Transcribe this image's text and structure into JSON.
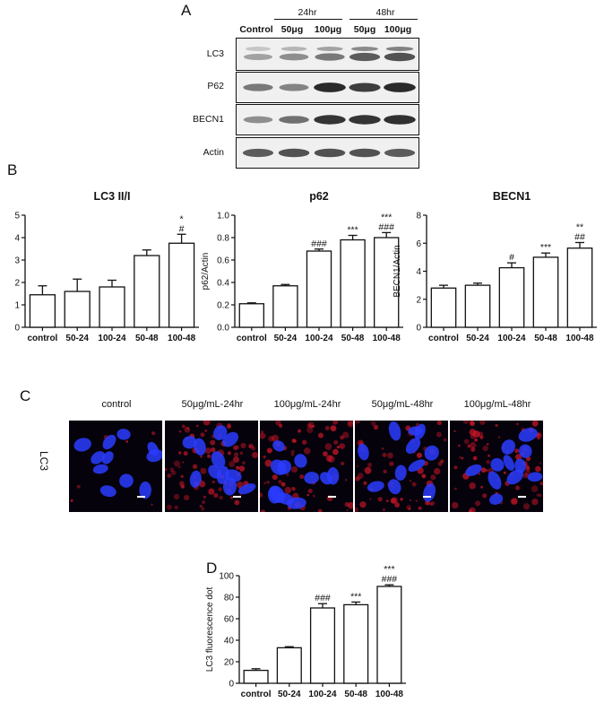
{
  "panels": {
    "A": "A",
    "B": "B",
    "C": "C",
    "D": "D"
  },
  "blot": {
    "time_headers": [
      "24hr",
      "48hr"
    ],
    "lanes": [
      "Control",
      "50μg",
      "100μg",
      "50μg",
      "100μg"
    ],
    "rows": [
      {
        "label": "LC3",
        "intensity": [
          0.35,
          0.45,
          0.55,
          0.7,
          0.75
        ]
      },
      {
        "label": "P62",
        "intensity": [
          0.55,
          0.5,
          0.95,
          0.85,
          0.95
        ]
      },
      {
        "label": "BECN1",
        "intensity": [
          0.45,
          0.6,
          0.9,
          0.9,
          0.92
        ]
      },
      {
        "label": "Actin",
        "intensity": [
          0.7,
          0.75,
          0.75,
          0.75,
          0.7
        ]
      }
    ]
  },
  "chart_data": [
    {
      "type": "bar",
      "title": "LC3 II/I",
      "ylabel": "LC3 II/I",
      "xlabel": "",
      "categories": [
        "control",
        "50-24",
        "100-24",
        "50-48",
        "100-48"
      ],
      "values": [
        1.45,
        1.6,
        1.8,
        3.2,
        3.75
      ],
      "errors": [
        0.4,
        0.55,
        0.3,
        0.25,
        0.4
      ],
      "ylim": [
        0,
        5
      ],
      "yticks": [
        "0",
        "1",
        "2",
        "3",
        "4",
        "5"
      ],
      "annotations": [
        "",
        "",
        "",
        "",
        "*\n#"
      ]
    },
    {
      "type": "bar",
      "title": "p62",
      "ylabel": "p62/Actin",
      "xlabel": "",
      "categories": [
        "control",
        "50-24",
        "100-24",
        "50-48",
        "100-48"
      ],
      "values": [
        0.21,
        0.37,
        0.68,
        0.78,
        0.8
      ],
      "errors": [
        0.008,
        0.012,
        0.018,
        0.04,
        0.045
      ],
      "ylim": [
        0,
        1.0
      ],
      "yticks": [
        "0.0",
        "0.2",
        "0.4",
        "0.6",
        "0.8",
        "1.0"
      ],
      "annotations": [
        "",
        "",
        "###",
        "***",
        "***\n###"
      ]
    },
    {
      "type": "bar",
      "title": "BECN1",
      "ylabel": "BECN1/Actin",
      "xlabel": "",
      "categories": [
        "control",
        "50-24",
        "100-24",
        "50-48",
        "100-48"
      ],
      "values": [
        2.8,
        3.0,
        4.25,
        5.0,
        5.65
      ],
      "errors": [
        0.2,
        0.15,
        0.35,
        0.3,
        0.4
      ],
      "ylim": [
        0,
        8
      ],
      "yticks": [
        "0",
        "2",
        "4",
        "6",
        "8"
      ],
      "annotations": [
        "",
        "",
        "#",
        "***",
        "**\n##"
      ]
    },
    {
      "type": "bar",
      "title": "",
      "ylabel": "LC3 fluorescence dot",
      "xlabel": "",
      "categories": [
        "control",
        "50-24",
        "100-24",
        "50-48",
        "100-48"
      ],
      "values": [
        12,
        33,
        70,
        73,
        90
      ],
      "errors": [
        1.5,
        1.0,
        4.0,
        2.5,
        1.5
      ],
      "ylim": [
        0,
        100
      ],
      "yticks": [
        "0",
        "20",
        "40",
        "60",
        "80",
        "100"
      ],
      "annotations": [
        "",
        "",
        "###",
        "***",
        "***\n###"
      ]
    }
  ],
  "microscopy": {
    "row_label": "LC3",
    "conditions": [
      "control",
      "50μg/mL-24hr",
      "100μg/mL-24hr",
      "50μg/mL-48hr",
      "100μg/mL-48hr"
    ],
    "red_level": [
      0.05,
      0.7,
      0.6,
      0.55,
      0.65
    ],
    "nuclei_color": "#2a3cff",
    "lc3_color": "#d6182a"
  }
}
